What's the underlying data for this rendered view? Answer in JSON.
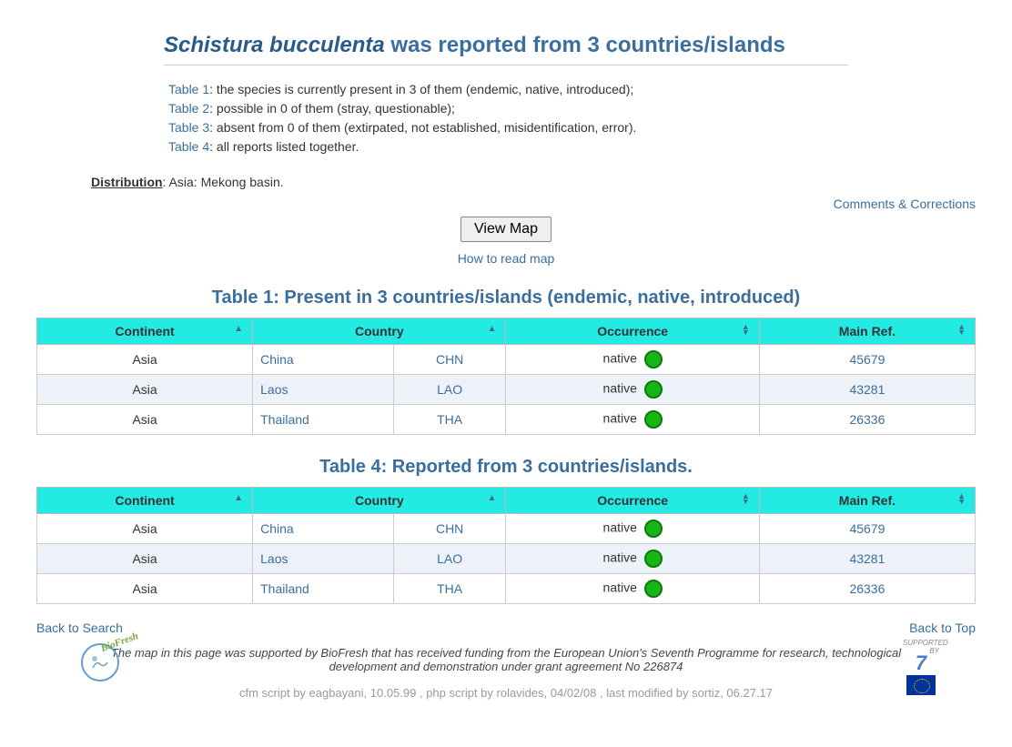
{
  "title": {
    "species": "Schistura bucculenta",
    "suffix": " was reported from 3 countries/islands"
  },
  "summary": {
    "t1_label": "Table 1",
    "t1_text": ": the species is currently present in 3 of them (endemic, native, introduced);",
    "t2_label": "Table 2",
    "t2_text": ": possible in 0 of them (stray, questionable);",
    "t3_label": "Table 3",
    "t3_text": ": absent from 0 of them (extirpated, not established, misidentification, error).",
    "t4_label": "Table 4",
    "t4_text": ": all reports listed together."
  },
  "distribution": {
    "label": "Distribution",
    "text": ": Asia: Mekong basin."
  },
  "links": {
    "comments": "Comments & Corrections",
    "viewmap": "View Map",
    "howto": "How to read map",
    "back_search": "Back to Search",
    "back_top": "Back to Top"
  },
  "table1": {
    "title": "Table 1: Present in 3 countries/islands (endemic, native, introduced)",
    "headers": {
      "continent": "Continent",
      "country": "Country",
      "occurrence": "Occurrence",
      "mainref": "Main Ref."
    },
    "rows": [
      {
        "continent": "Asia",
        "country": "China",
        "code": "CHN",
        "occurrence": "native",
        "ref": "45679"
      },
      {
        "continent": "Asia",
        "country": "Laos",
        "code": "LAO",
        "occurrence": "native",
        "ref": "43281"
      },
      {
        "continent": "Asia",
        "country": "Thailand",
        "code": "THA",
        "occurrence": "native",
        "ref": "26336"
      }
    ]
  },
  "table4": {
    "title": "Table 4: Reported from 3 countries/islands.",
    "headers": {
      "continent": "Continent",
      "country": "Country",
      "occurrence": "Occurrence",
      "mainref": "Main Ref."
    },
    "rows": [
      {
        "continent": "Asia",
        "country": "China",
        "code": "CHN",
        "occurrence": "native",
        "ref": "45679"
      },
      {
        "continent": "Asia",
        "country": "Laos",
        "code": "LAO",
        "occurrence": "native",
        "ref": "43281"
      },
      {
        "continent": "Asia",
        "country": "Thailand",
        "code": "THA",
        "occurrence": "native",
        "ref": "26336"
      }
    ]
  },
  "footer": {
    "note": "The map in this page was supported by BioFresh that has received funding from the European Union's Seventh Programme for research, technological development and demonstration under grant agreement No 226874",
    "credits": "cfm script by eagbayani, 10.05.99 ,  php script by rolavides, 04/02/08 ,  last modified by sortiz, 06.27.17",
    "supported_by": "SUPPORTED BY",
    "biofresh": "BioFresh"
  },
  "colors": {
    "header_bg": "#24eae4",
    "link_color": "#3a6e9e",
    "row_alt": "#edf2f9",
    "occ_green": "#17b617"
  }
}
